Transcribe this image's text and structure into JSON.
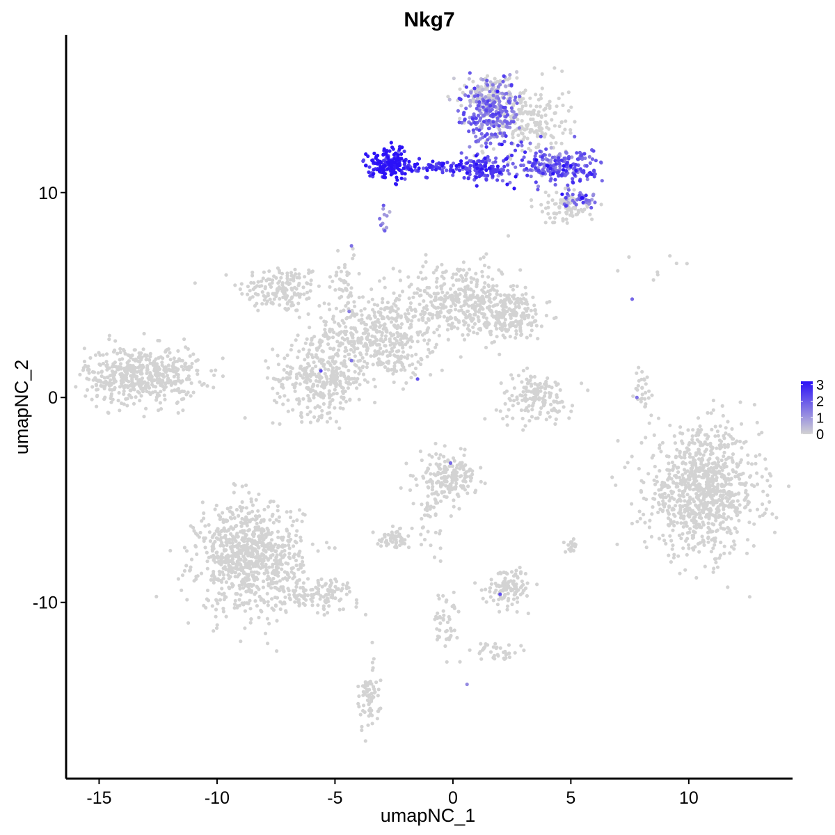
{
  "chart_data": {
    "type": "scatter",
    "title": "Nkg7",
    "xlabel": "umapNC_1",
    "ylabel": "umapNC_2",
    "xlim": [
      -16.4,
      14.4
    ],
    "ylim": [
      -18.6,
      17.7
    ],
    "x_ticks": [
      -15,
      -10,
      -5,
      0,
      5,
      10
    ],
    "x_tick_labels": [
      "-15",
      "-10",
      "-5",
      "0",
      "5",
      "10"
    ],
    "y_ticks": [
      -10,
      0,
      10
    ],
    "y_tick_labels": [
      "-10",
      "0",
      "10"
    ],
    "grid": false,
    "legend": {
      "placement": "right",
      "type": "colorbar",
      "min": 0,
      "max": 3.2,
      "ticks": [
        0,
        1,
        2,
        3
      ],
      "tick_labels": [
        "0",
        "1",
        "2",
        "3"
      ],
      "low_color": "#d3d3d3",
      "high_color": "#2b11f7"
    },
    "clusters": [
      {
        "name": "upper-left arm",
        "cx": -7.3,
        "cy": 5.3,
        "sx": 0.9,
        "sy": 0.6,
        "n": 160,
        "expr": 0
      },
      {
        "name": "center hub",
        "cx": -3.3,
        "cy": 3.0,
        "sx": 1.3,
        "sy": 0.9,
        "n": 420,
        "expr": 0
      },
      {
        "name": "upper-right arm",
        "cx": 0.2,
        "cy": 4.8,
        "sx": 1.3,
        "sy": 0.9,
        "n": 320,
        "expr": 0
      },
      {
        "name": "right arm",
        "cx": 2.3,
        "cy": 4.0,
        "sx": 0.9,
        "sy": 0.6,
        "n": 220,
        "expr": 0
      },
      {
        "name": "lower-left lobe",
        "cx": -5.6,
        "cy": 0.9,
        "sx": 1.0,
        "sy": 0.9,
        "n": 320,
        "expr": 0
      },
      {
        "name": "top spike",
        "cx": -4.6,
        "cy": 5.8,
        "sx": 0.25,
        "sy": 0.9,
        "n": 40,
        "expr": 0
      },
      {
        "name": "diagonal streak",
        "cx": -2.4,
        "cy": 1.5,
        "sx": 0.45,
        "sy": 0.35,
        "n": 35,
        "expr": 0
      },
      {
        "name": "far-left cluster",
        "cx": -13.2,
        "cy": 1.1,
        "sx": 1.2,
        "sy": 0.7,
        "n": 500,
        "expr": 0
      },
      {
        "name": "small crescent",
        "cx": 3.5,
        "cy": 0.0,
        "sx": 0.8,
        "sy": 0.6,
        "n": 150,
        "expr": 0
      },
      {
        "name": "thin streak right",
        "cx": 8.1,
        "cy": 0.3,
        "sx": 0.2,
        "sy": 0.6,
        "n": 30,
        "expr": 0
      },
      {
        "name": "right large cluster",
        "cx": 10.6,
        "cy": -4.6,
        "sx": 1.2,
        "sy": 1.5,
        "n": 900,
        "expr": 0
      },
      {
        "name": "center small cluster",
        "cx": -0.2,
        "cy": -3.9,
        "sx": 0.6,
        "sy": 0.55,
        "n": 180,
        "expr": 0
      },
      {
        "name": "bottom-left large",
        "cx": -8.6,
        "cy": -7.8,
        "sx": 1.1,
        "sy": 1.3,
        "n": 850,
        "expr": 0
      },
      {
        "name": "bottom-left tail",
        "cx": -5.8,
        "cy": -9.6,
        "sx": 0.9,
        "sy": 0.4,
        "n": 120,
        "expr": 0
      },
      {
        "name": "mid small blob",
        "cx": -2.5,
        "cy": -6.9,
        "sx": 0.35,
        "sy": 0.2,
        "n": 55,
        "expr": 0
      },
      {
        "name": "mid lower blob",
        "cx": 2.4,
        "cy": -9.2,
        "sx": 0.5,
        "sy": 0.45,
        "n": 110,
        "expr": 0
      },
      {
        "name": "vertical thread",
        "cx": -1.0,
        "cy": -5.8,
        "sx": 0.25,
        "sy": 0.8,
        "n": 40,
        "expr": 0
      },
      {
        "name": "lower thread",
        "cx": -0.3,
        "cy": -11.0,
        "sx": 0.3,
        "sy": 0.7,
        "n": 45,
        "expr": 0
      },
      {
        "name": "lower right bits",
        "cx": 1.9,
        "cy": -12.4,
        "sx": 0.45,
        "sy": 0.25,
        "n": 35,
        "expr": 0
      },
      {
        "name": "bottom strand",
        "cx": -3.6,
        "cy": -14.6,
        "sx": 0.25,
        "sy": 0.8,
        "n": 70,
        "expr": 0
      },
      {
        "name": "small right blob",
        "cx": 5.0,
        "cy": -7.3,
        "sx": 0.15,
        "sy": 0.2,
        "n": 20,
        "expr": 0
      },
      {
        "name": "top-right grey",
        "cx": 3.1,
        "cy": 13.6,
        "sx": 0.9,
        "sy": 0.9,
        "n": 220,
        "expr": 0
      },
      {
        "name": "top grey column",
        "cx": 1.5,
        "cy": 14.8,
        "sx": 0.6,
        "sy": 0.5,
        "n": 120,
        "expr": 0.1
      },
      {
        "name": "right lobe grey",
        "cx": 4.8,
        "cy": 9.3,
        "sx": 0.6,
        "sy": 0.4,
        "n": 80,
        "expr": 0
      },
      {
        "name": "NK band left",
        "cx": -2.7,
        "cy": 11.4,
        "sx": 0.45,
        "sy": 0.35,
        "n": 170,
        "expr": 3.1
      },
      {
        "name": "NK band mid",
        "cx": -0.4,
        "cy": 11.2,
        "sx": 1.0,
        "sy": 0.15,
        "n": 70,
        "expr": 2.6
      },
      {
        "name": "NK band right",
        "cx": 1.2,
        "cy": 11.2,
        "sx": 0.6,
        "sy": 0.35,
        "n": 110,
        "expr": 2.3
      },
      {
        "name": "NK upper column",
        "cx": 1.6,
        "cy": 13.8,
        "sx": 0.6,
        "sy": 0.8,
        "n": 230,
        "expr": 1.6
      },
      {
        "name": "NK right wing",
        "cx": 4.4,
        "cy": 11.3,
        "sx": 0.9,
        "sy": 0.45,
        "n": 230,
        "expr": 1.9
      },
      {
        "name": "NK lower right",
        "cx": 5.5,
        "cy": 9.7,
        "sx": 0.4,
        "sy": 0.2,
        "n": 40,
        "expr": 1.7
      },
      {
        "name": "NK small drip",
        "cx": -2.9,
        "cy": 8.7,
        "sx": 0.12,
        "sy": 0.35,
        "n": 12,
        "expr": 1.0
      },
      {
        "name": "scattered dots top-right",
        "cx": 8.6,
        "cy": 6.6,
        "sx": 0.9,
        "sy": 0.3,
        "n": 8,
        "expr": 0
      }
    ],
    "highlights": [
      {
        "x": -4.3,
        "y": 7.4,
        "v": 1.6
      },
      {
        "x": -4.4,
        "y": 4.2,
        "v": 1.4
      },
      {
        "x": -5.6,
        "y": 1.3,
        "v": 2.3
      },
      {
        "x": -4.3,
        "y": 1.8,
        "v": 1.6
      },
      {
        "x": -1.5,
        "y": 0.9,
        "v": 2.1
      },
      {
        "x": 7.6,
        "y": 4.8,
        "v": 1.8
      },
      {
        "x": 7.8,
        "y": 0.0,
        "v": 1.6
      },
      {
        "x": -0.1,
        "y": -3.2,
        "v": 1.8
      },
      {
        "x": 2.0,
        "y": -9.6,
        "v": 2.2
      },
      {
        "x": 0.6,
        "y": -14.0,
        "v": 1.2
      },
      {
        "x": 2.6,
        "y": 10.2,
        "v": 3.2
      },
      {
        "x": 2.3,
        "y": 10.4,
        "v": 3.1
      },
      {
        "x": 5.0,
        "y": 11.3,
        "v": 3.2
      },
      {
        "x": -2.9,
        "y": 10.9,
        "v": 3.2
      }
    ]
  }
}
